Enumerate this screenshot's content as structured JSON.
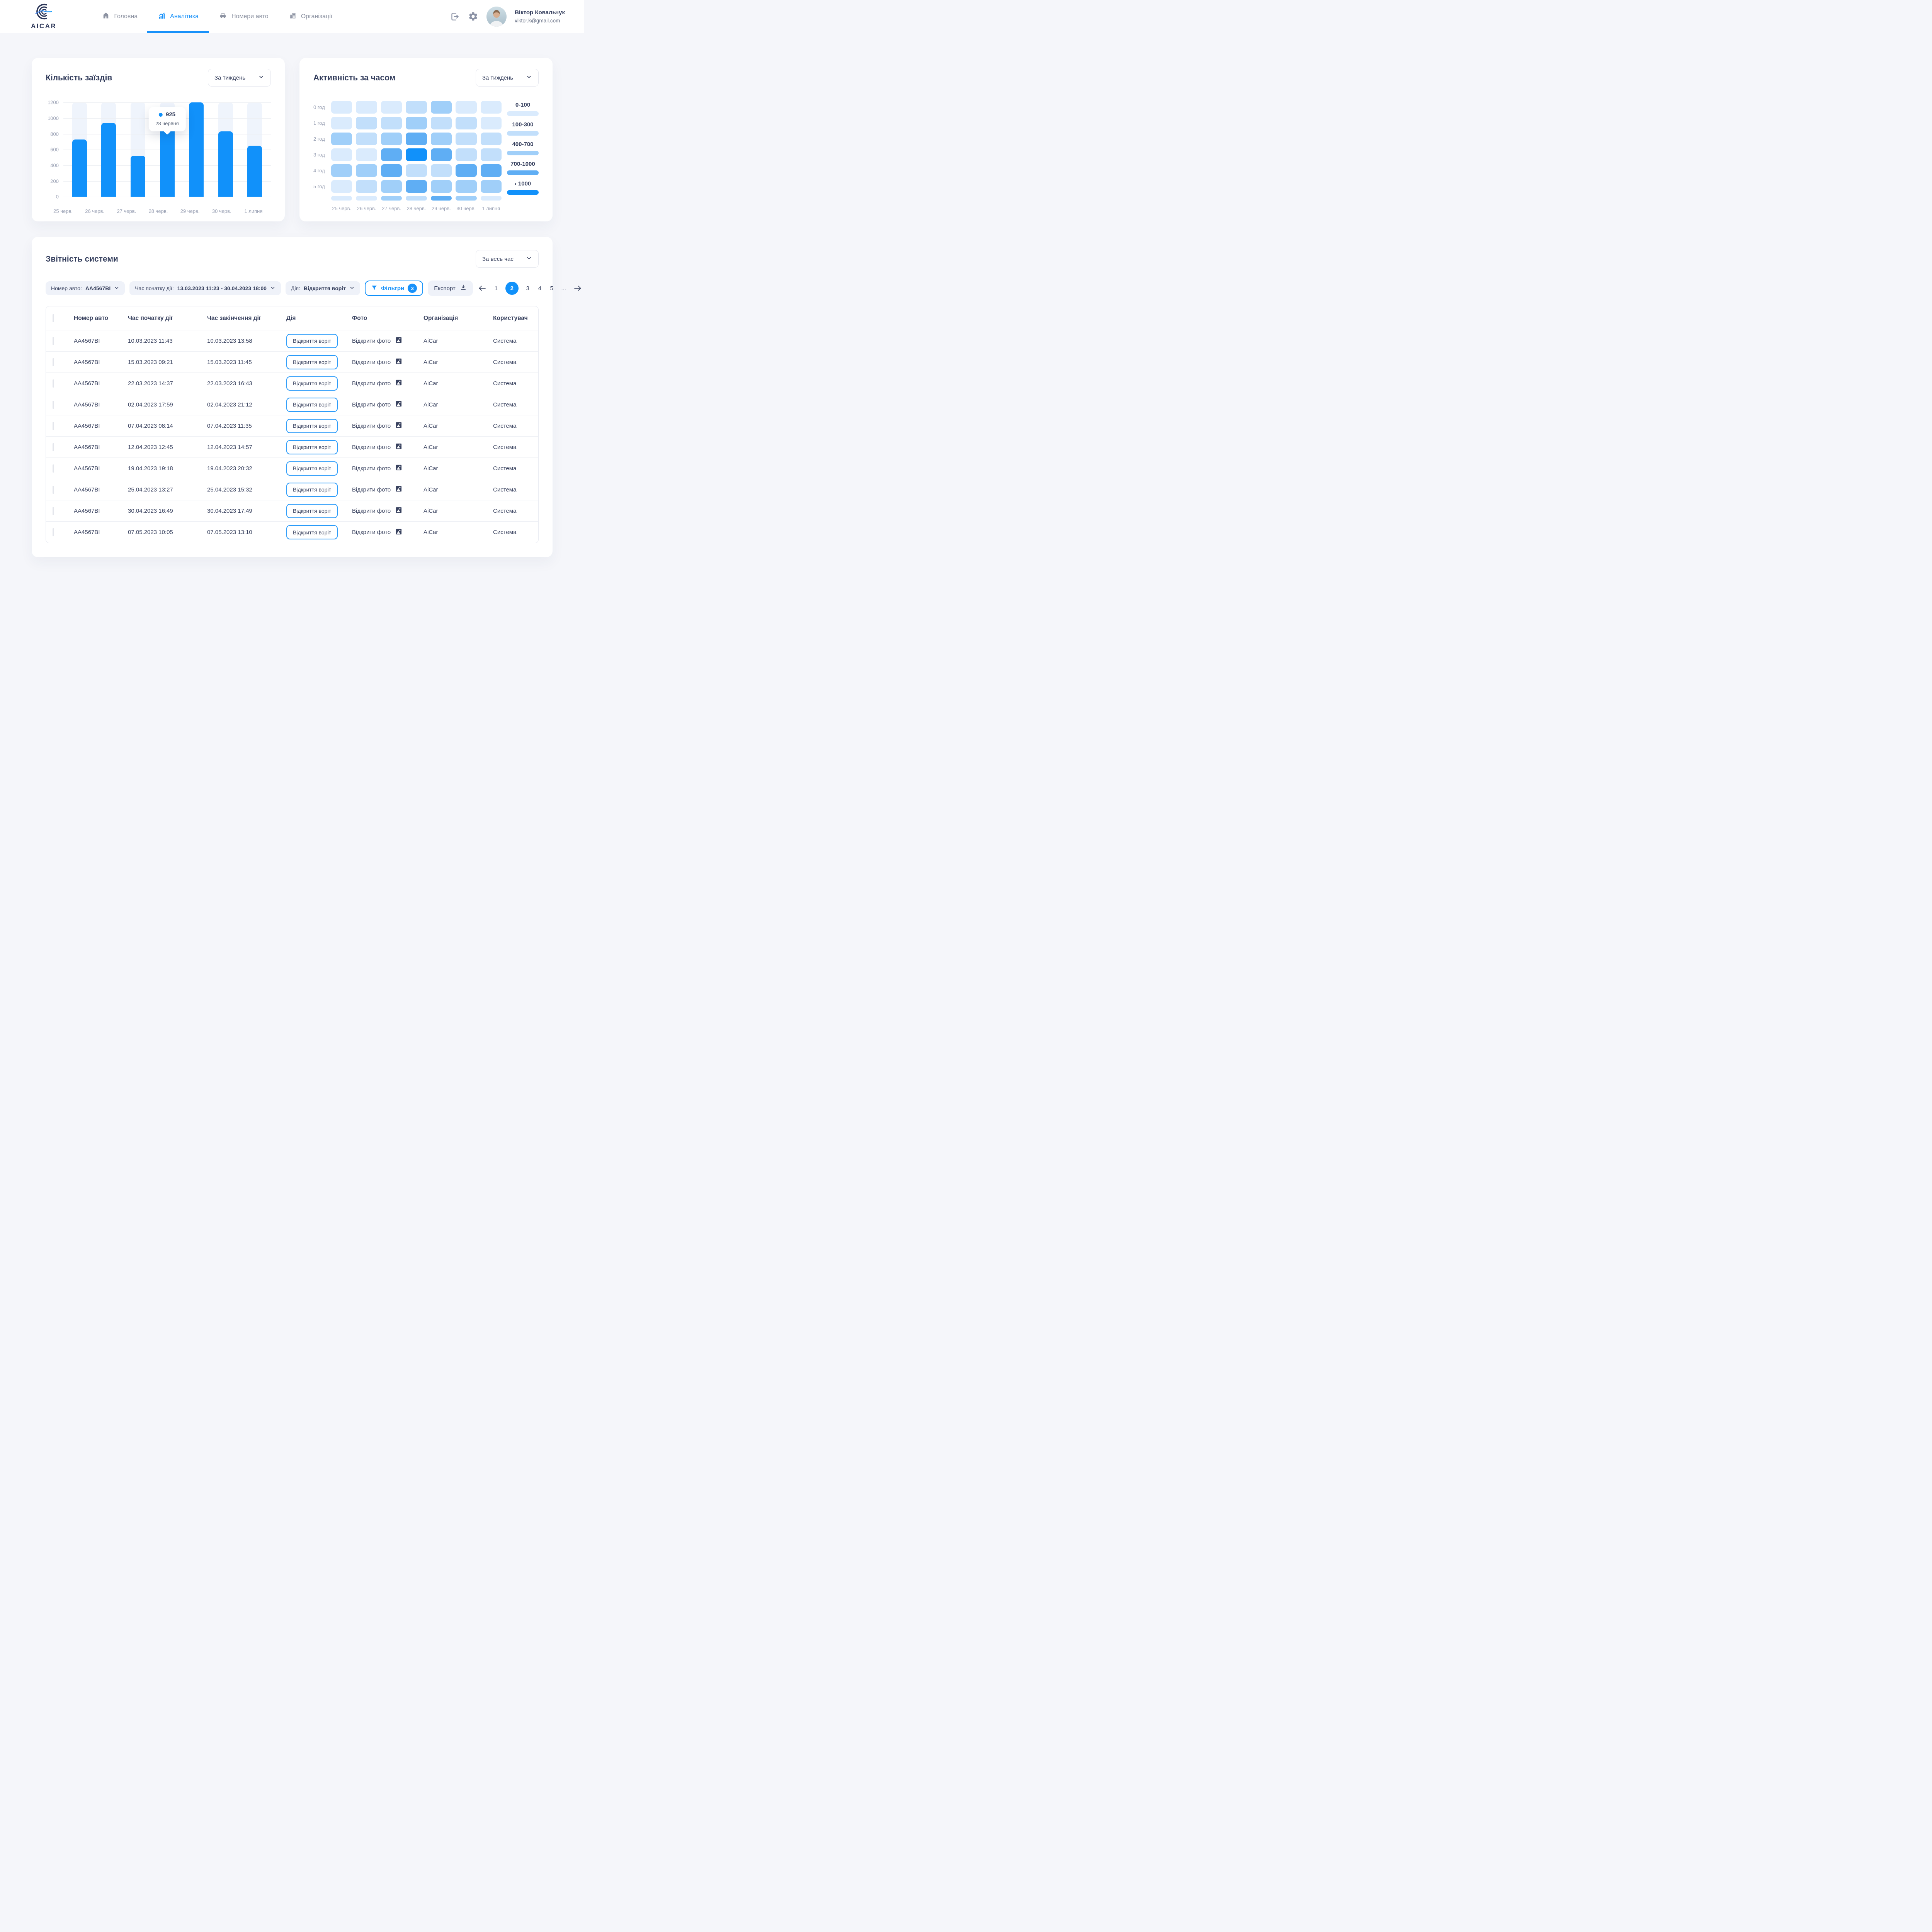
{
  "page": {
    "background": "#F5F6FA",
    "accent": "#1191FA"
  },
  "header": {
    "logo": {
      "text": "AICAR"
    },
    "nav": [
      {
        "label": "Головна",
        "icon": "home-icon",
        "active": false
      },
      {
        "label": "Аналітика",
        "icon": "analytics-icon",
        "active": true
      },
      {
        "label": "Номери авто",
        "icon": "car-icon",
        "active": false
      },
      {
        "label": "Організації",
        "icon": "building-icon",
        "active": false
      }
    ],
    "user": {
      "name": "Віктор Ковальчук",
      "email": "viktor.k@gmail.com"
    }
  },
  "entries_card": {
    "title": "Кількість заїздів",
    "period_value": "За тиждень",
    "tooltip": {
      "value": "925",
      "date": "28 червня"
    },
    "chart_data": {
      "type": "bar",
      "categories": [
        "25 черв.",
        "26 черв.",
        "27 черв.",
        "28 черв.",
        "29 черв.",
        "30 черв.",
        "1 липня"
      ],
      "values": [
        730,
        940,
        520,
        925,
        1200,
        830,
        650
      ],
      "y_ticks": [
        1200,
        1000,
        800,
        600,
        400,
        200,
        0
      ],
      "ylim": [
        0,
        1200
      ],
      "bar_color": "#1191FA",
      "track_color": "#EFF4FC",
      "tooltip_index": 3
    }
  },
  "activity_card": {
    "title": "Активність за часом",
    "period_value": "За тиждень",
    "chart_data": {
      "type": "heatmap",
      "row_labels": [
        "0 год",
        "1 год",
        "2 год",
        "3 год",
        "4 год",
        "5 год",
        ""
      ],
      "col_labels": [
        "25 черв.",
        "26 черв.",
        "27 черв.",
        "28 черв.",
        "29 черв.",
        "30 черв.",
        "1 липня"
      ],
      "levels": [
        [
          1,
          1,
          1,
          2,
          3,
          1,
          1
        ],
        [
          1,
          2,
          2,
          3,
          2,
          2,
          1
        ],
        [
          3,
          2,
          3,
          4,
          3,
          2,
          2
        ],
        [
          1,
          1,
          4,
          5,
          4,
          2,
          2
        ],
        [
          3,
          3,
          4,
          2,
          2,
          4,
          4
        ],
        [
          1,
          2,
          3,
          4,
          3,
          3,
          3
        ],
        [
          1,
          1,
          3,
          2,
          4,
          3,
          1
        ]
      ],
      "partial_last_row": true,
      "level_colors": {
        "1": "#DAEBFD",
        "2": "#C2DFFB",
        "3": "#A0CFF9",
        "4": "#5FAEF4",
        "5": "#1191FA"
      },
      "legend": [
        {
          "label": "0-100",
          "color": "#DAEBFD"
        },
        {
          "label": "100-300",
          "color": "#C2DFFB"
        },
        {
          "label": "400-700",
          "color": "#A0CFF9"
        },
        {
          "label": "700-1000",
          "color": "#5FAEF4"
        },
        {
          "label": "› 1000",
          "color": "#1191FA"
        }
      ]
    }
  },
  "report_card": {
    "title": "Звітність системи",
    "period_value": "За весь час",
    "filters": [
      {
        "label": "Номер авто:",
        "value": "AA4567BI"
      },
      {
        "label": "Час початку дії:",
        "value": "13.03.2023 11:23 - 30.04.2023 18:00"
      },
      {
        "label": "Дія:",
        "value": "Відкриття воріт"
      }
    ],
    "filters_button": {
      "label": "Фільтри",
      "count": "3"
    },
    "export_button": {
      "label": "Експорт"
    },
    "pagination": {
      "pages": [
        "1",
        "2",
        "3",
        "4",
        "5",
        "..."
      ],
      "active": "2"
    },
    "table": {
      "columns": [
        "Номер авто",
        "Час початку дії",
        "Час закінчення дії",
        "Дія",
        "Фото",
        "Організація",
        "Користувач"
      ],
      "action_label": "Відкриття воріт",
      "photo_label": "Відкрити фото",
      "rows": [
        {
          "plate": "AA4567BI",
          "start": "10.03.2023 11:43",
          "end": "10.03.2023 13:58",
          "org": "AiCar",
          "user": "Система"
        },
        {
          "plate": "AA4567BI",
          "start": "15.03.2023 09:21",
          "end": "15.03.2023 11:45",
          "org": "AiCar",
          "user": "Система"
        },
        {
          "plate": "AA4567BI",
          "start": "22.03.2023 14:37",
          "end": "22.03.2023 16:43",
          "org": "AiCar",
          "user": "Система"
        },
        {
          "plate": "AA4567BI",
          "start": "02.04.2023 17:59",
          "end": "02.04.2023 21:12",
          "org": "AiCar",
          "user": "Система"
        },
        {
          "plate": "AA4567BI",
          "start": "07.04.2023 08:14",
          "end": "07.04.2023 11:35",
          "org": "AiCar",
          "user": "Система"
        },
        {
          "plate": "AA4567BI",
          "start": "12.04.2023 12:45",
          "end": "12.04.2023 14:57",
          "org": "AiCar",
          "user": "Система"
        },
        {
          "plate": "AA4567BI",
          "start": "19.04.2023 19:18",
          "end": "19.04.2023 20:32",
          "org": "AiCar",
          "user": "Система"
        },
        {
          "plate": "AA4567BI",
          "start": "25.04.2023 13:27",
          "end": "25.04.2023 15:32",
          "org": "AiCar",
          "user": "Система"
        },
        {
          "plate": "AA4567BI",
          "start": "30.04.2023 16:49",
          "end": "30.04.2023 17:49",
          "org": "AiCar",
          "user": "Система"
        },
        {
          "plate": "AA4567BI",
          "start": "07.05.2023 10:05",
          "end": "07.05.2023 13:10",
          "org": "AiCar",
          "user": "Система"
        }
      ]
    }
  }
}
